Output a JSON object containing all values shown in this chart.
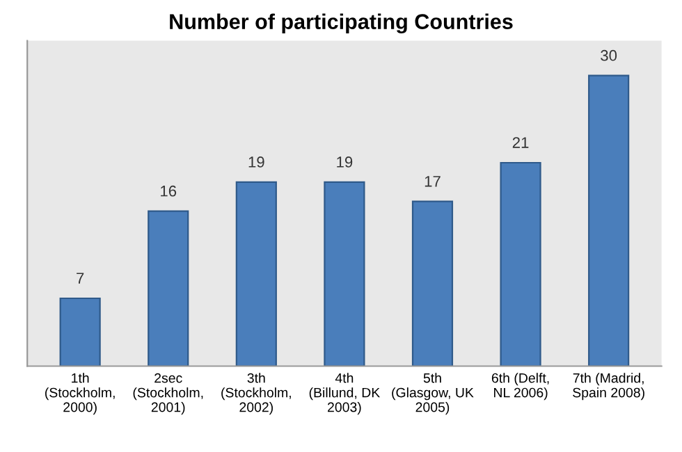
{
  "chart_data": {
    "type": "bar",
    "title": "Number of participating Countries",
    "categories": [
      "1th (Stockholm, 2000)",
      "2sec (Stockholm, 2001)",
      "3th (Stockholm, 2002)",
      "4th (Billund, DK 2003)",
      "5th (Glasgow, UK 2005)",
      "6th (Delft, NL 2006)",
      "7th (Madrid, Spain 2008)"
    ],
    "values": [
      7,
      16,
      19,
      19,
      17,
      21,
      30
    ],
    "color": "#4a7ebb",
    "data_labels": true,
    "tick_labels": "x",
    "grid": false,
    "legend": false
  }
}
